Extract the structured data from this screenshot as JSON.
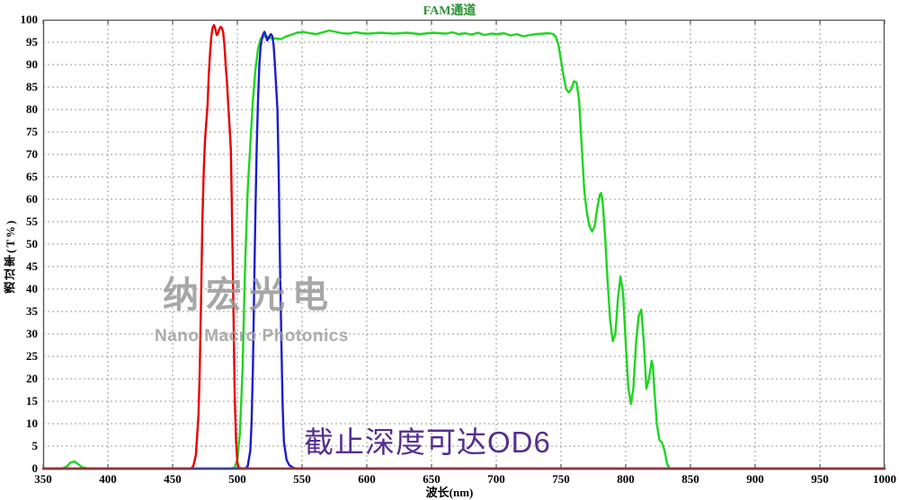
{
  "title": "FAM通道",
  "colors": {
    "title": "#2a9235",
    "grid": "#9a9a9a",
    "border": "#5a5a5a",
    "annotation": "#542e91",
    "watermark": "#9a9a9a"
  },
  "watermark": {
    "cjk": "纳宏光电",
    "en": "Nano Macro Photonics"
  },
  "annotation": {
    "text": "截止深度可达OD6"
  },
  "chart_data": {
    "type": "line",
    "title": "FAM通道",
    "xlabel": "波长(nm)",
    "ylabel": "透过率(T%)",
    "xlim": [
      350,
      1000
    ],
    "ylim": [
      0,
      100
    ],
    "grid": true,
    "legend": "none",
    "x_ticks": [
      350,
      400,
      450,
      500,
      550,
      600,
      650,
      700,
      750,
      800,
      850,
      900,
      950,
      1000
    ],
    "y_ticks": [
      0,
      5,
      10,
      15,
      20,
      25,
      30,
      35,
      40,
      45,
      50,
      55,
      60,
      65,
      70,
      75,
      80,
      85,
      90,
      95,
      100
    ],
    "series": [
      {
        "name": "green_longpass_band",
        "color": "#1fd51f",
        "width": 2.4,
        "points": [
          [
            350,
            0
          ],
          [
            364,
            0
          ],
          [
            368,
            0.4
          ],
          [
            371,
            1.3
          ],
          [
            374,
            1.6
          ],
          [
            377,
            1.0
          ],
          [
            380,
            0.3
          ],
          [
            385,
            0
          ],
          [
            420,
            0
          ],
          [
            450,
            0
          ],
          [
            480,
            0
          ],
          [
            495,
            0
          ],
          [
            498,
            0.3
          ],
          [
            500,
            2
          ],
          [
            502,
            8
          ],
          [
            504,
            22
          ],
          [
            506,
            45
          ],
          [
            508,
            62
          ],
          [
            510,
            72
          ],
          [
            512,
            82
          ],
          [
            514,
            89
          ],
          [
            516,
            93.5
          ],
          [
            518,
            95.8
          ],
          [
            520,
            96.3
          ],
          [
            523,
            96.2
          ],
          [
            526,
            95.9
          ],
          [
            530,
            95.8
          ],
          [
            534,
            95.7
          ],
          [
            537,
            96.2
          ],
          [
            541,
            96.6
          ],
          [
            546,
            97.1
          ],
          [
            551,
            97.3
          ],
          [
            556,
            97.0
          ],
          [
            561,
            96.8
          ],
          [
            566,
            97.2
          ],
          [
            571,
            97.6
          ],
          [
            576,
            97.3
          ],
          [
            581,
            97.0
          ],
          [
            586,
            96.9
          ],
          [
            591,
            97.2
          ],
          [
            596,
            97.0
          ],
          [
            601,
            96.9
          ],
          [
            611,
            97.1
          ],
          [
            621,
            96.9
          ],
          [
            631,
            97.1
          ],
          [
            641,
            96.8
          ],
          [
            651,
            97.1
          ],
          [
            661,
            96.9
          ],
          [
            666,
            97.2
          ],
          [
            671,
            96.8
          ],
          [
            676,
            97.0
          ],
          [
            681,
            96.7
          ],
          [
            686,
            97.1
          ],
          [
            691,
            96.6
          ],
          [
            696,
            96.9
          ],
          [
            701,
            96.8
          ],
          [
            706,
            97.0
          ],
          [
            711,
            96.5
          ],
          [
            716,
            96.8
          ],
          [
            721,
            96.3
          ],
          [
            726,
            96.6
          ],
          [
            731,
            96.8
          ],
          [
            736,
            96.9
          ],
          [
            741,
            97.0
          ],
          [
            744,
            96.8
          ],
          [
            746,
            96.2
          ],
          [
            748,
            94.5
          ],
          [
            750,
            91
          ],
          [
            752,
            87.5
          ],
          [
            754,
            84.5
          ],
          [
            756,
            83.8
          ],
          [
            758,
            84.5
          ],
          [
            760,
            86.3
          ],
          [
            762,
            86
          ],
          [
            764,
            82
          ],
          [
            766,
            72
          ],
          [
            768,
            62
          ],
          [
            770,
            57
          ],
          [
            772,
            54
          ],
          [
            774,
            52.8
          ],
          [
            776,
            54
          ],
          [
            778,
            58
          ],
          [
            780,
            61
          ],
          [
            781,
            61.4
          ],
          [
            782,
            60
          ],
          [
            784,
            52
          ],
          [
            786,
            42
          ],
          [
            788,
            33
          ],
          [
            790,
            28.4
          ],
          [
            792,
            30
          ],
          [
            794,
            38
          ],
          [
            796,
            42.8
          ],
          [
            798,
            39
          ],
          [
            800,
            28
          ],
          [
            802,
            18
          ],
          [
            804,
            14.4
          ],
          [
            806,
            18
          ],
          [
            808,
            28
          ],
          [
            810,
            34
          ],
          [
            812,
            35.4
          ],
          [
            814,
            28
          ],
          [
            816,
            17.8
          ],
          [
            818,
            20
          ],
          [
            820,
            24
          ],
          [
            821,
            23
          ],
          [
            822,
            18
          ],
          [
            824,
            10
          ],
          [
            826,
            6.4
          ],
          [
            828,
            5.8
          ],
          [
            830,
            4
          ],
          [
            832,
            1
          ],
          [
            834,
            0
          ],
          [
            850,
            0
          ],
          [
            900,
            0
          ],
          [
            950,
            0
          ],
          [
            1000,
            0
          ]
        ]
      },
      {
        "name": "blue_bandpass_510_540",
        "color": "#1c1ccd",
        "width": 2.4,
        "points": [
          [
            350,
            0
          ],
          [
            400,
            0
          ],
          [
            450,
            0
          ],
          [
            480,
            0
          ],
          [
            500,
            0
          ],
          [
            506,
            0
          ],
          [
            508,
            0.5
          ],
          [
            510,
            4
          ],
          [
            511,
            10
          ],
          [
            512,
            22
          ],
          [
            513,
            40
          ],
          [
            514,
            58
          ],
          [
            515,
            72
          ],
          [
            516,
            82
          ],
          [
            517,
            90
          ],
          [
            518,
            94
          ],
          [
            519,
            95.8
          ],
          [
            520,
            96.8
          ],
          [
            521,
            97.3
          ],
          [
            522,
            96.5
          ],
          [
            523,
            95.4
          ],
          [
            524,
            95.8
          ],
          [
            525,
            96.4
          ],
          [
            526,
            96.8
          ],
          [
            527,
            96.3
          ],
          [
            528,
            94.5
          ],
          [
            529,
            90
          ],
          [
            530,
            85
          ],
          [
            531,
            80
          ],
          [
            532,
            65
          ],
          [
            533,
            45
          ],
          [
            534,
            28
          ],
          [
            535,
            14
          ],
          [
            536,
            6
          ],
          [
            538,
            2
          ],
          [
            540,
            0.8
          ],
          [
            543,
            0.2
          ],
          [
            546,
            0
          ],
          [
            600,
            0
          ],
          [
            700,
            0
          ],
          [
            800,
            0
          ],
          [
            900,
            0
          ],
          [
            1000,
            0
          ]
        ]
      },
      {
        "name": "red_bandpass_470_500",
        "color": "#e60000",
        "width": 2.4,
        "points": [
          [
            350,
            0
          ],
          [
            380,
            0
          ],
          [
            410,
            0
          ],
          [
            440,
            0
          ],
          [
            460,
            0
          ],
          [
            464,
            0
          ],
          [
            466,
            0.5
          ],
          [
            468,
            3
          ],
          [
            470,
            12
          ],
          [
            471,
            22
          ],
          [
            472,
            38
          ],
          [
            473,
            55
          ],
          [
            474,
            66
          ],
          [
            475,
            73
          ],
          [
            476,
            77
          ],
          [
            477,
            81
          ],
          [
            478,
            88
          ],
          [
            479,
            93
          ],
          [
            480,
            96.5
          ],
          [
            481,
            98.3
          ],
          [
            482,
            98.8
          ],
          [
            483,
            98
          ],
          [
            484,
            96.6
          ],
          [
            485,
            96.9
          ],
          [
            486,
            97.8
          ],
          [
            487,
            98.4
          ],
          [
            488,
            98.2
          ],
          [
            489,
            97.3
          ],
          [
            490,
            94.5
          ],
          [
            491,
            90
          ],
          [
            492,
            86
          ],
          [
            493,
            81
          ],
          [
            494,
            76
          ],
          [
            495,
            71
          ],
          [
            496,
            55
          ],
          [
            497,
            35
          ],
          [
            498,
            16
          ],
          [
            499,
            6
          ],
          [
            500,
            1.5
          ],
          [
            501,
            0.3
          ],
          [
            503,
            0
          ],
          [
            520,
            0
          ],
          [
            560,
            0
          ],
          [
            600,
            0
          ],
          [
            650,
            0
          ],
          [
            700,
            0
          ],
          [
            750,
            0
          ],
          [
            800,
            0
          ],
          [
            850,
            0
          ],
          [
            900,
            0
          ],
          [
            950,
            0
          ],
          [
            1000,
            0
          ]
        ]
      }
    ]
  }
}
